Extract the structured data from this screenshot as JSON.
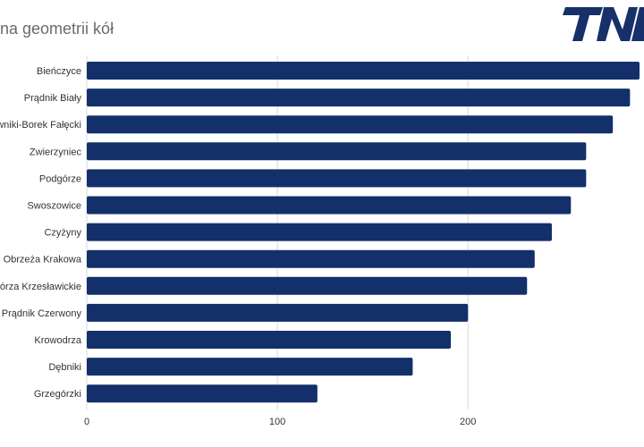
{
  "title": "na geometrii kół",
  "logo_text": "TN",
  "colors": {
    "bar": "#13306b",
    "grid": "#d9d9d9",
    "axis_text": "#333333",
    "title_text": "#6b6b6b",
    "logo": "#17306a"
  },
  "chart_data": {
    "type": "bar",
    "orientation": "horizontal",
    "title": "na geometrii kół",
    "xlabel": "",
    "ylabel": "",
    "categories": [
      "Bieńczyce",
      "Prądnik Biały",
      "ewniki-Borek Fałęcki",
      "Zwierzyniec",
      "Podgórze",
      "Swoszowice",
      "Czyżyny",
      "Obrzeża Krakowa",
      "zgórza Krzesławickie",
      "Prądnik Czerwony",
      "Krowodrza",
      "Dębniki",
      "Grzegórzki"
    ],
    "values": [
      290,
      285,
      276,
      262,
      262,
      254,
      244,
      235,
      231,
      200,
      191,
      171,
      121
    ],
    "xlim": [
      0,
      290
    ],
    "xticks": [
      0,
      100,
      200
    ],
    "grid": true,
    "legend": "none"
  }
}
